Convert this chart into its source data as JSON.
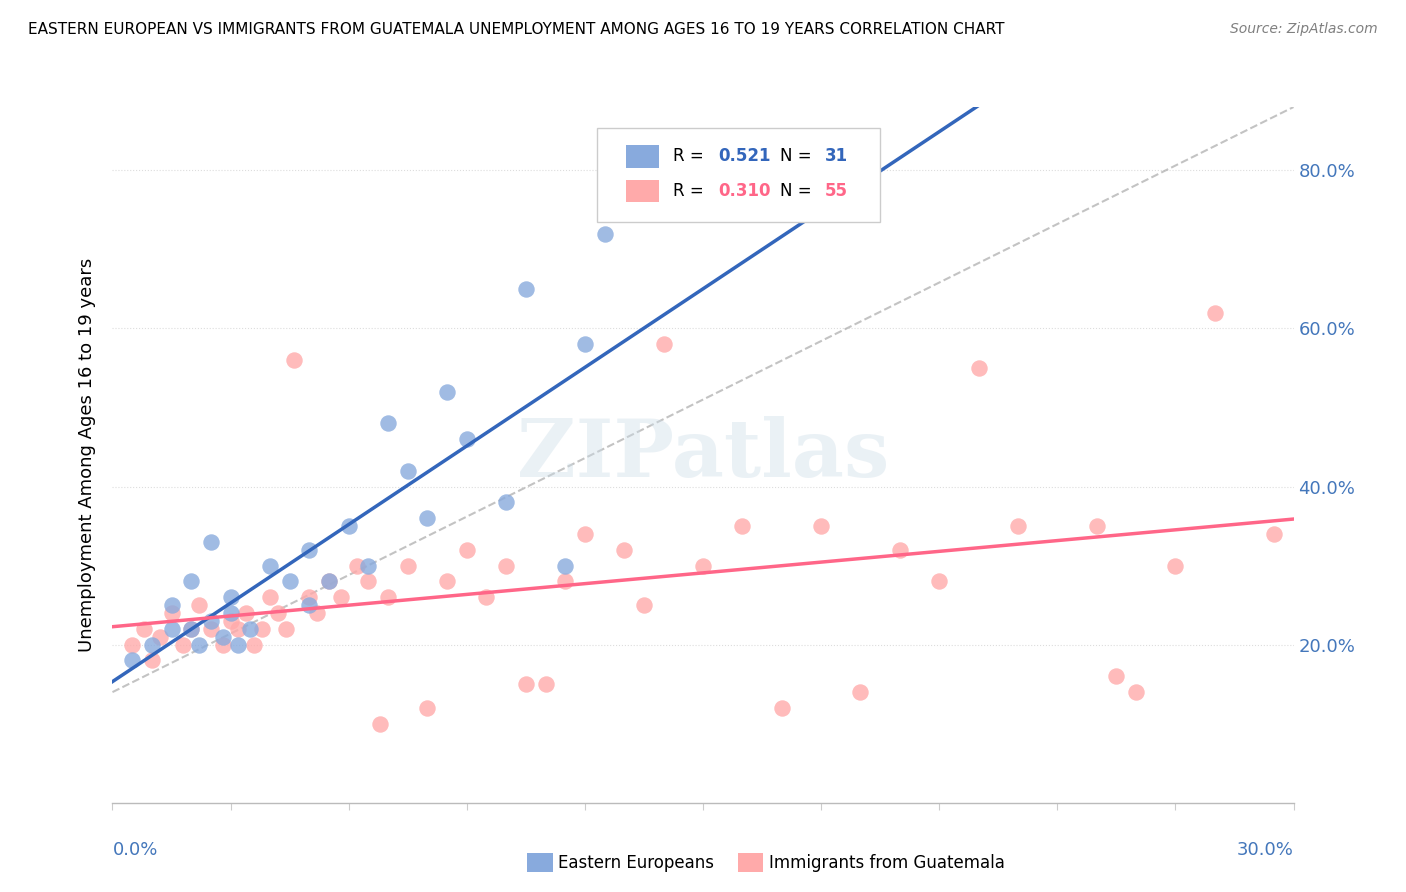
{
  "title": "EASTERN EUROPEAN VS IMMIGRANTS FROM GUATEMALA UNEMPLOYMENT AMONG AGES 16 TO 19 YEARS CORRELATION CHART",
  "source": "Source: ZipAtlas.com",
  "ylabel": "Unemployment Among Ages 16 to 19 years",
  "xlim": [
    0.0,
    0.3
  ],
  "ylim": [
    0.0,
    0.88
  ],
  "yticks": [
    0.2,
    0.4,
    0.6,
    0.8
  ],
  "ytick_labels": [
    "20.0%",
    "40.0%",
    "60.0%",
    "80.0%"
  ],
  "color_blue": "#88AADD",
  "color_pink": "#FFAAAA",
  "color_blue_line": "#3366BB",
  "color_pink_line": "#FF6688",
  "color_dashed": "#AAAAAA",
  "watermark": "ZIPatlas",
  "r_blue": "0.521",
  "n_blue": "31",
  "r_pink": "0.310",
  "n_pink": "55",
  "blue_scatter_x": [
    0.005,
    0.01,
    0.015,
    0.015,
    0.02,
    0.02,
    0.022,
    0.025,
    0.025,
    0.028,
    0.03,
    0.03,
    0.032,
    0.035,
    0.04,
    0.045,
    0.05,
    0.05,
    0.055,
    0.06,
    0.065,
    0.07,
    0.075,
    0.08,
    0.085,
    0.09,
    0.1,
    0.105,
    0.115,
    0.12,
    0.125
  ],
  "blue_scatter_y": [
    0.18,
    0.2,
    0.22,
    0.25,
    0.22,
    0.28,
    0.2,
    0.23,
    0.33,
    0.21,
    0.24,
    0.26,
    0.2,
    0.22,
    0.3,
    0.28,
    0.32,
    0.25,
    0.28,
    0.35,
    0.3,
    0.48,
    0.42,
    0.36,
    0.52,
    0.46,
    0.38,
    0.65,
    0.3,
    0.58,
    0.72
  ],
  "pink_scatter_x": [
    0.005,
    0.008,
    0.01,
    0.012,
    0.015,
    0.018,
    0.02,
    0.022,
    0.025,
    0.028,
    0.03,
    0.032,
    0.034,
    0.036,
    0.038,
    0.04,
    0.042,
    0.044,
    0.046,
    0.05,
    0.052,
    0.055,
    0.058,
    0.062,
    0.065,
    0.068,
    0.07,
    0.075,
    0.08,
    0.085,
    0.09,
    0.095,
    0.1,
    0.105,
    0.11,
    0.115,
    0.12,
    0.13,
    0.135,
    0.14,
    0.15,
    0.16,
    0.17,
    0.18,
    0.19,
    0.2,
    0.21,
    0.22,
    0.23,
    0.25,
    0.255,
    0.26,
    0.27,
    0.28,
    0.295
  ],
  "pink_scatter_y": [
    0.2,
    0.22,
    0.18,
    0.21,
    0.24,
    0.2,
    0.22,
    0.25,
    0.22,
    0.2,
    0.23,
    0.22,
    0.24,
    0.2,
    0.22,
    0.26,
    0.24,
    0.22,
    0.56,
    0.26,
    0.24,
    0.28,
    0.26,
    0.3,
    0.28,
    0.1,
    0.26,
    0.3,
    0.12,
    0.28,
    0.32,
    0.26,
    0.3,
    0.15,
    0.15,
    0.28,
    0.34,
    0.32,
    0.25,
    0.58,
    0.3,
    0.35,
    0.12,
    0.35,
    0.14,
    0.32,
    0.28,
    0.55,
    0.35,
    0.35,
    0.16,
    0.14,
    0.3,
    0.62,
    0.34
  ]
}
